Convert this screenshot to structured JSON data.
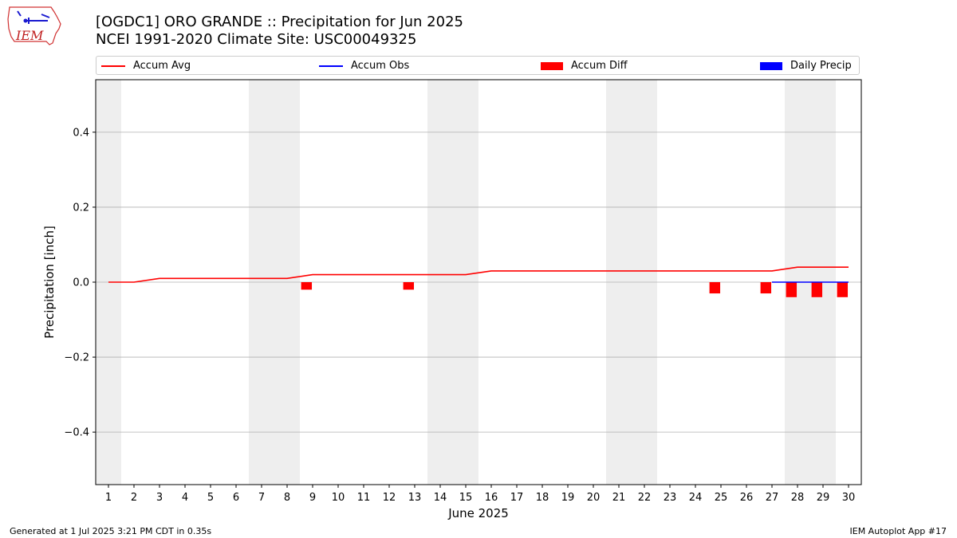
{
  "header": {
    "title_line1": "[OGDC1] ORO GRANDE :: Precipitation for Jun 2025",
    "title_line2": "NCEI 1991-2020 Climate Site: USC00049325",
    "logo_text": "IEM"
  },
  "legend": {
    "position": "top (above plot)",
    "items": [
      {
        "label": "Accum Avg",
        "kind": "line",
        "color": "#ff0000"
      },
      {
        "label": "Accum Obs",
        "kind": "line",
        "color": "#0000ff"
      },
      {
        "label": "Accum Diff",
        "kind": "patch",
        "color": "#ff0000"
      },
      {
        "label": "Daily Precip",
        "kind": "patch",
        "color": "#0000ff"
      }
    ]
  },
  "footer": {
    "left": "Generated at 1 Jul 2025 3:21 PM CDT in 0.35s",
    "right": "IEM Autoplot App #17"
  },
  "chart_data": {
    "type": "line",
    "xlabel": "June 2025",
    "ylabel": "Precipitation [inch]",
    "xlim": [
      0.5,
      30.5
    ],
    "ylim": [
      -0.54,
      0.54
    ],
    "yticks": [
      -0.4,
      -0.2,
      0.0,
      0.2,
      0.4
    ],
    "ytick_labels": [
      "−0.4",
      "−0.2",
      "0.0",
      "0.2",
      "0.4"
    ],
    "xticks": [
      1,
      2,
      3,
      4,
      5,
      6,
      7,
      8,
      9,
      10,
      11,
      12,
      13,
      14,
      15,
      16,
      17,
      18,
      19,
      20,
      21,
      22,
      23,
      24,
      25,
      26,
      27,
      28,
      29,
      30
    ],
    "grid": "horizontal",
    "weekend_shading_days": [
      1,
      7,
      8,
      14,
      15,
      21,
      22,
      28,
      29
    ],
    "shade_color": "#eeeeee",
    "series": [
      {
        "name": "Accum Avg",
        "kind": "line",
        "color": "#ff0000",
        "days": [
          1,
          2,
          3,
          4,
          5,
          6,
          7,
          8,
          9,
          10,
          11,
          12,
          13,
          14,
          15,
          16,
          17,
          18,
          19,
          20,
          21,
          22,
          23,
          24,
          25,
          26,
          27,
          28,
          29,
          30
        ],
        "values": [
          0.0,
          0.0,
          0.01,
          0.01,
          0.01,
          0.01,
          0.01,
          0.01,
          0.02,
          0.02,
          0.02,
          0.02,
          0.02,
          0.02,
          0.02,
          0.03,
          0.03,
          0.03,
          0.03,
          0.03,
          0.03,
          0.03,
          0.03,
          0.03,
          0.03,
          0.03,
          0.03,
          0.04,
          0.04,
          0.04
        ]
      },
      {
        "name": "Accum Obs",
        "kind": "line",
        "color": "#0000ff",
        "days": [
          27,
          28,
          29,
          30
        ],
        "values": [
          0.0,
          0.0,
          0.0,
          0.0
        ]
      },
      {
        "name": "Accum Diff",
        "kind": "bar",
        "color": "#ff0000",
        "days": [
          9,
          13,
          25,
          27,
          28,
          29,
          30
        ],
        "values": [
          -0.02,
          -0.02,
          -0.03,
          -0.03,
          -0.04,
          -0.04,
          -0.04
        ]
      },
      {
        "name": "Daily Precip",
        "kind": "bar",
        "color": "#0000ff",
        "days": [],
        "values": []
      }
    ]
  }
}
